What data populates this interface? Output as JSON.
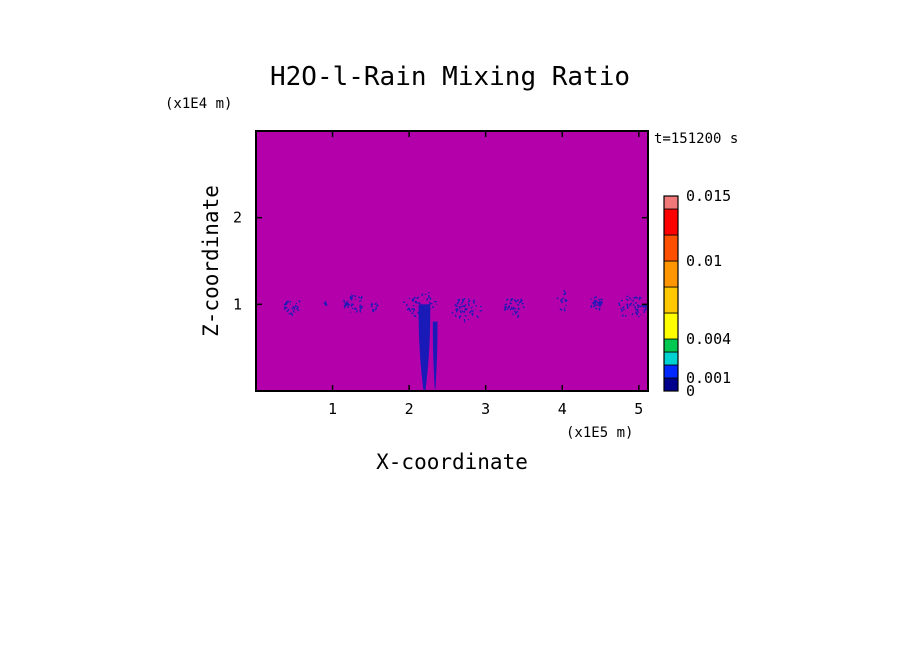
{
  "chart_data": {
    "type": "heatmap",
    "title": "H2O-l-Rain Mixing Ratio",
    "xlabel": "X-coordinate",
    "ylabel": "Z-coordinate",
    "x_unit": "(x1E5 m)",
    "y_unit": "(x1E4 m)",
    "time_label": "t=151200 s",
    "xlim": [
      0,
      5.12
    ],
    "ylim": [
      0,
      3.0
    ],
    "x_ticks": [
      1,
      2,
      3,
      4,
      5
    ],
    "x_tick_labels": [
      "1",
      "2",
      "3",
      "4",
      "5"
    ],
    "y_ticks": [
      1,
      2
    ],
    "y_tick_labels": [
      "1",
      "2"
    ],
    "background_value": 0,
    "background_color": "#b400aa",
    "cloud_color": "#1a1ab8",
    "colorbar": {
      "levels": [
        0,
        0.001,
        0.002,
        0.003,
        0.004,
        0.006,
        0.008,
        0.01,
        0.012,
        0.014,
        0.015
      ],
      "colors": [
        "#00008c",
        "#0028ff",
        "#00d2d2",
        "#00c850",
        "#ffff00",
        "#ffc800",
        "#ff9600",
        "#ff5000",
        "#ff0000",
        "#f07878",
        "#ffc8c8"
      ],
      "tick_values": [
        0,
        0.001,
        0.004,
        0.01,
        0.015
      ],
      "tick_labels": [
        "0",
        "0.001",
        "0.004",
        "0.01",
        "0.015"
      ]
    },
    "cloud_patches": [
      {
        "x": 0.47,
        "z": 1.0,
        "w": 0.22,
        "h": 0.22
      },
      {
        "x": 0.92,
        "z": 1.0,
        "w": 0.05,
        "h": 0.08
      },
      {
        "x": 1.28,
        "z": 1.02,
        "w": 0.28,
        "h": 0.24
      },
      {
        "x": 1.55,
        "z": 0.98,
        "w": 0.08,
        "h": 0.1
      },
      {
        "x": 2.15,
        "z": 1.0,
        "w": 0.42,
        "h": 0.3
      },
      {
        "x": 2.75,
        "z": 0.95,
        "w": 0.4,
        "h": 0.25
      },
      {
        "x": 3.38,
        "z": 0.98,
        "w": 0.28,
        "h": 0.22
      },
      {
        "x": 4.0,
        "z": 1.05,
        "w": 0.12,
        "h": 0.28
      },
      {
        "x": 4.45,
        "z": 1.02,
        "w": 0.22,
        "h": 0.14
      },
      {
        "x": 4.92,
        "z": 0.98,
        "w": 0.4,
        "h": 0.26
      }
    ],
    "rain_shafts": [
      {
        "x": 2.2,
        "z_top": 1.0,
        "z_bottom": 0.0,
        "w": 0.15
      },
      {
        "x": 2.34,
        "z_top": 0.8,
        "z_bottom": 0.02,
        "w": 0.06
      }
    ]
  }
}
